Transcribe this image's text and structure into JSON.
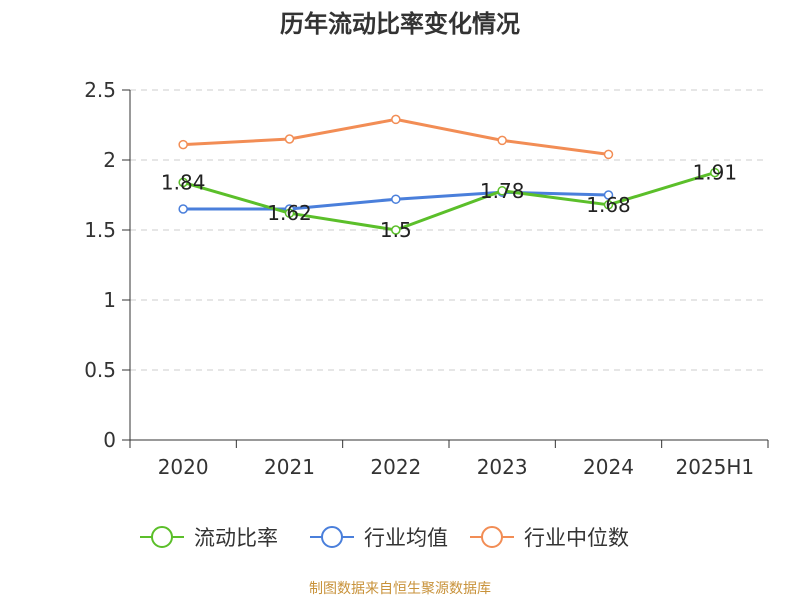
{
  "title": "历年流动比率变化情况",
  "source": "制图数据来自恒生聚源数据库",
  "chart_data": {
    "type": "line",
    "categories": [
      "2020",
      "2021",
      "2022",
      "2023",
      "2024",
      "2025H1"
    ],
    "ylim": [
      0,
      2.5
    ],
    "yticks": [
      "0",
      "0.5",
      "1",
      "1.5",
      "2",
      "2.5"
    ],
    "grid": true,
    "legend_position": "bottom",
    "series": [
      {
        "name": "流动比率",
        "color": "#5bbf2a",
        "values": [
          1.84,
          1.62,
          1.5,
          1.78,
          1.68,
          1.91
        ],
        "labels": [
          "1.84",
          "1.62",
          "1.5",
          "1.78",
          "1.68",
          "1.91"
        ]
      },
      {
        "name": "行业均值",
        "color": "#4a7fdb",
        "values": [
          1.65,
          1.65,
          1.72,
          1.77,
          1.75,
          null
        ]
      },
      {
        "name": "行业中位数",
        "color": "#f28d55",
        "values": [
          2.11,
          2.15,
          2.29,
          2.14,
          2.04,
          null
        ]
      }
    ]
  }
}
